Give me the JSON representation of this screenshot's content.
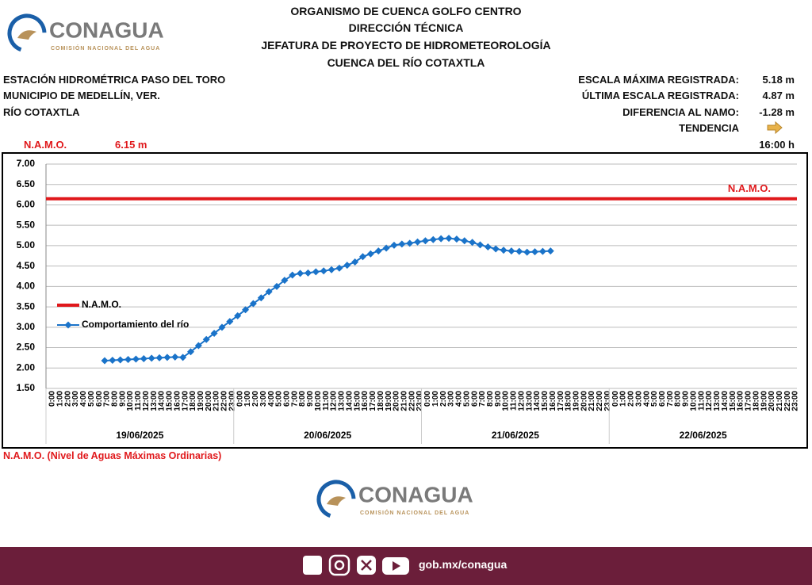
{
  "header": {
    "logo_name": "CONAGUA",
    "logo_subtitle": "COMISIÓN NACIONAL DEL AGUA",
    "lines": [
      "ORGANISMO DE CUENCA GOLFO CENTRO",
      "DIRECCIÓN TÉCNICA",
      "JEFATURA DE PROYECTO DE HIDROMETEOROLOGÍA",
      "CUENCA DEL RÍO COTAXTLA"
    ]
  },
  "station": [
    "ESTACIÓN HIDROMÉTRICA PASO DEL TORO",
    "MUNICIPIO DE MEDELLÍN, VER.",
    "RÍO COTAXTLA"
  ],
  "stats": [
    {
      "label": "ESCALA MÁXIMA REGISTRADA:",
      "value": "5.18 m"
    },
    {
      "label": "ÚLTIMA ESCALA REGISTRADA:",
      "value": "4.87 m"
    },
    {
      "label": "DIFERENCIA AL NAMO:",
      "value": "-1.28 m"
    },
    {
      "label": "TENDENCIA"
    }
  ],
  "namo": {
    "label": "N.A.M.O.",
    "value": "6.15 m"
  },
  "time": "16:00 h",
  "footnote": "N.A.M.O. (Nivel de Aguas Máximas Ordinarias)",
  "footer": {
    "logo_name": "CONAGUA",
    "logo_subtitle": "COMISIÓN NACIONAL DEL AGUA",
    "url": "gob.mx/conagua"
  },
  "chart_data": {
    "type": "line",
    "categories": [
      "0:00",
      "1:00",
      "2:00",
      "3:00",
      "4:00",
      "5:00",
      "6:00",
      "7:00",
      "8:00",
      "9:00",
      "10:00",
      "11:00",
      "12:00",
      "13:00",
      "14:00",
      "15:00",
      "16:00",
      "17:00",
      "18:00",
      "19:00",
      "20:00",
      "21:00",
      "22:00",
      "23:00",
      "0:00",
      "1:00",
      "2:00",
      "3:00",
      "4:00",
      "5:00",
      "6:00",
      "7:00",
      "8:00",
      "9:00",
      "10:00",
      "11:00",
      "12:00",
      "13:00",
      "14:00",
      "15:00",
      "16:00",
      "17:00",
      "18:00",
      "19:00",
      "20:00",
      "21:00",
      "22:00",
      "23:00",
      "0:00",
      "1:00",
      "2:00",
      "3:00",
      "4:00",
      "5:00",
      "6:00",
      "7:00",
      "8:00",
      "9:00",
      "10:00",
      "11:00",
      "12:00",
      "13:00",
      "14:00",
      "15:00",
      "16:00",
      "17:00",
      "18:00",
      "19:00",
      "20:00",
      "21:00",
      "22:00",
      "23:00",
      "0:00",
      "1:00",
      "2:00",
      "3:00",
      "4:00",
      "5:00",
      "6:00",
      "7:00",
      "8:00",
      "9:00",
      "10:00",
      "11:00",
      "12:00",
      "13:00",
      "14:00",
      "15:00",
      "16:00",
      "17:00",
      "18:00",
      "19:00",
      "20:00",
      "21:00",
      "22:00",
      "23:00"
    ],
    "x_groups": [
      "19/06/2025",
      "20/06/2025",
      "21/06/2025",
      "22/06/2025"
    ],
    "reference_lines": [
      {
        "name": "N.A.M.O.",
        "value": 6.15,
        "color": "#e0181b"
      }
    ],
    "series": [
      {
        "name": "Comportamiento del río",
        "color": "#1a73c9",
        "values": [
          null,
          null,
          null,
          null,
          null,
          null,
          null,
          2.18,
          2.19,
          2.2,
          2.21,
          2.22,
          2.23,
          2.24,
          2.25,
          2.26,
          2.27,
          2.26,
          2.4,
          2.55,
          2.7,
          2.85,
          3.0,
          3.14,
          3.28,
          3.43,
          3.58,
          3.72,
          3.87,
          4.0,
          4.15,
          4.28,
          4.32,
          4.33,
          4.36,
          4.38,
          4.41,
          4.45,
          4.52,
          4.6,
          4.73,
          4.8,
          4.87,
          4.94,
          5.01,
          5.04,
          5.06,
          5.09,
          5.12,
          5.15,
          5.17,
          5.18,
          5.16,
          5.12,
          5.08,
          5.02,
          4.97,
          4.92,
          4.89,
          4.87,
          4.86,
          4.84,
          4.85,
          4.86,
          4.87,
          null,
          null,
          null,
          null,
          null,
          null,
          null,
          null,
          null,
          null,
          null,
          null,
          null,
          null,
          null,
          null,
          null,
          null,
          null,
          null,
          null,
          null,
          null,
          null,
          null,
          null,
          null,
          null,
          null,
          null,
          null
        ]
      }
    ],
    "ylim": [
      1.5,
      7.0
    ],
    "yticks": [
      {
        "value": 1.5,
        "label": "1.50"
      },
      {
        "value": 2.0,
        "label": "2.00"
      },
      {
        "value": 2.5,
        "label": "2.50"
      },
      {
        "value": 3.0,
        "label": "3.00"
      },
      {
        "value": 3.5,
        "label": "3.50"
      },
      {
        "value": 4.0,
        "label": "4.00"
      },
      {
        "value": 4.5,
        "label": "4.50"
      },
      {
        "value": 5.0,
        "label": "5.00"
      },
      {
        "value": 5.5,
        "label": "5.50"
      },
      {
        "value": 6.0,
        "label": "6.00"
      },
      {
        "value": 6.5,
        "label": "6.50"
      },
      {
        "value": 7.0,
        "label": "7.00"
      }
    ],
    "grid": true
  }
}
